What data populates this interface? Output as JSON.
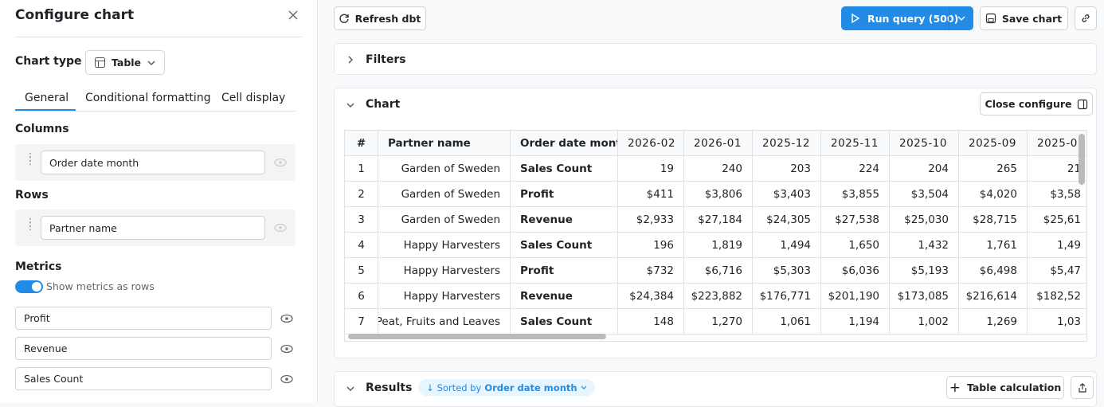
{
  "sidebar": {
    "title": "Configure chart",
    "chart_type_label": "Chart type",
    "chart_type": "Table",
    "tabs": [
      "General",
      "Conditional formatting",
      "Cell display"
    ],
    "columns_label": "Columns",
    "columns": [
      "Order date month"
    ],
    "rows_label": "Rows",
    "rows": [
      "Partner name"
    ],
    "metrics_label": "Metrics",
    "show_metrics_toggle": "Show metrics as rows",
    "metrics": [
      "Profit",
      "Revenue",
      "Sales Count"
    ]
  },
  "toolbar": {
    "refresh": "Refresh dbt",
    "run_query": "Run query (500)",
    "save": "Save chart"
  },
  "filters": {
    "title": "Filters"
  },
  "chart": {
    "title": "Chart",
    "close_configure": "Close configure"
  },
  "table": {
    "header": [
      "#",
      "Partner name",
      "Order date month",
      "2026-02",
      "2026-01",
      "2025-12",
      "2025-11",
      "2025-10",
      "2025-09",
      "2025-0"
    ],
    "rows": [
      [
        1,
        "Garden of Sweden",
        "Sales Count",
        "19",
        "240",
        "203",
        "224",
        "204",
        "265",
        "21"
      ],
      [
        2,
        "Garden of Sweden",
        "Profit",
        "$411",
        "$3,806",
        "$3,403",
        "$3,855",
        "$3,504",
        "$4,020",
        "$3,58"
      ],
      [
        3,
        "Garden of Sweden",
        "Revenue",
        "$2,933",
        "$27,184",
        "$24,305",
        "$27,538",
        "$25,030",
        "$28,715",
        "$25,61"
      ],
      [
        4,
        "Happy Harvesters",
        "Sales Count",
        "196",
        "1,819",
        "1,494",
        "1,650",
        "1,432",
        "1,761",
        "1,49"
      ],
      [
        5,
        "Happy Harvesters",
        "Profit",
        "$732",
        "$6,716",
        "$5,303",
        "$6,036",
        "$5,193",
        "$6,498",
        "$5,47"
      ],
      [
        6,
        "Happy Harvesters",
        "Revenue",
        "$24,384",
        "$223,882",
        "$176,771",
        "$201,190",
        "$173,085",
        "$216,614",
        "$182,52"
      ],
      [
        7,
        "Peat, Fruits and Leaves",
        "Sales Count",
        "148",
        "1,270",
        "1,061",
        "1,194",
        "1,002",
        "1,269",
        "1,03"
      ]
    ]
  },
  "results": {
    "title": "Results",
    "sorted_by": "Sorted by",
    "sort_field": "Order date month",
    "table_calculation": "Table calculation"
  }
}
